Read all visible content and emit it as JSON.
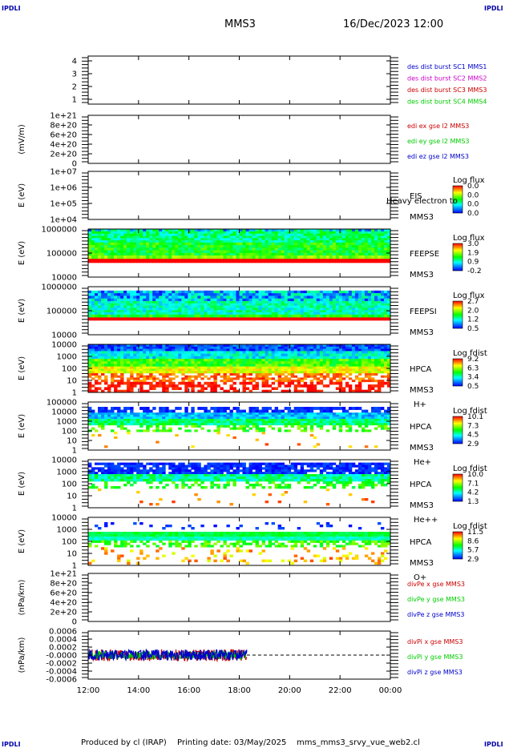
{
  "header": {
    "logo_left": "IPDLI",
    "logo_right": "IPDLI",
    "mission": "MMS3",
    "datetime": "16/Dec/2023 12:00"
  },
  "footer": {
    "logo_left": "IPDLI",
    "logo_right": "IPDLI",
    "produced_by": "Produced by cl (IRAP)",
    "printing_date": "Printing date: 03/May/2025",
    "script_name": "mms_mms3_srvy_vue_web2.cl"
  },
  "colors": {
    "blue": "#0000cc",
    "magenta": "#cc00cc",
    "red": "#cc0000",
    "green": "#00cc00"
  },
  "chart_data": [
    {
      "type": "line",
      "id": "burst",
      "ylabel": "",
      "yticks": [
        "4",
        "3",
        "2",
        "1"
      ],
      "ylim": [
        0.5,
        4.5
      ],
      "series": [
        {
          "name": "des dist burst SC1 MMS1",
          "color": "#0000cc",
          "values": []
        },
        {
          "name": "des dist burst SC2 MMS2",
          "color": "#cc00cc",
          "values": []
        },
        {
          "name": "des dist burst SC3 MMS3",
          "color": "#cc0000",
          "values": []
        },
        {
          "name": "des dist burst SC4 MMS4",
          "color": "#00cc00",
          "values": []
        }
      ]
    },
    {
      "type": "line",
      "id": "edi",
      "ylabel": "(mV/m)",
      "yticks": [
        "1e+21",
        "8e+20",
        "6e+20",
        "4e+20",
        "2e+20",
        "0"
      ],
      "ylim": [
        0,
        1e+21
      ],
      "zero_line": true,
      "series": [
        {
          "name": "edi ex gse l2 MMS3",
          "color": "#cc0000",
          "values": []
        },
        {
          "name": "edi ey gse l2 MMS3",
          "color": "#00cc00",
          "values": []
        },
        {
          "name": "edi ez gse l2 MMS3",
          "color": "#0000cc",
          "values": []
        }
      ]
    },
    {
      "type": "heatmap",
      "id": "eis",
      "ylabel": "E (eV)",
      "yticks": [
        "1e+07",
        "1e+06",
        "1e+05",
        "1e+04"
      ],
      "labels": [
        "EIS",
        "MMS3"
      ],
      "overlay": "Heavy electron to",
      "colorbar": {
        "title": "Log flux",
        "ticks": [
          "0.0",
          "0.0",
          "0.0",
          "0.0"
        ]
      },
      "coverage": [
        0,
        0
      ],
      "bands": []
    },
    {
      "type": "heatmap",
      "id": "feeps_e",
      "ylabel": "E (eV)",
      "yticks": [
        "1000000",
        "100000",
        "10000"
      ],
      "labels": [
        "FEEPSE",
        "MMS3"
      ],
      "colorbar": {
        "title": "Log flux",
        "ticks": [
          "3.0",
          "1.9",
          "0.9",
          "-0.2"
        ]
      },
      "coverage": [
        12,
        24
      ],
      "bands": [
        {
          "y0": 0.0,
          "y1": 0.05,
          "level": 0.3,
          "noise": 0.25
        },
        {
          "y0": 0.05,
          "y1": 0.28,
          "level": 0.4,
          "noise": 0.12
        },
        {
          "y0": 0.28,
          "y1": 0.55,
          "level": 0.5,
          "noise": 0.12
        },
        {
          "y0": 0.55,
          "y1": 0.62,
          "level": 0.62,
          "noise": 0.08
        },
        {
          "y0": 0.62,
          "y1": 0.7,
          "level": 1.0,
          "noise": 0.0
        },
        {
          "y0": 0.7,
          "y1": 1.0,
          "level": -1,
          "noise": 0
        }
      ]
    },
    {
      "type": "heatmap",
      "id": "feeps_i",
      "ylabel": "E (eV)",
      "yticks": [
        "1000000",
        "100000",
        "10000"
      ],
      "labels": [
        "FEEPSI",
        "MMS3"
      ],
      "colorbar": {
        "title": "Log flux",
        "ticks": [
          "2.7",
          "2.0",
          "1.2",
          "0.5"
        ]
      },
      "coverage": [
        12,
        24
      ],
      "bands": [
        {
          "y0": 0.08,
          "y1": 0.3,
          "level": 0.22,
          "noise": 0.2
        },
        {
          "y0": 0.3,
          "y1": 0.58,
          "level": 0.35,
          "noise": 0.12
        },
        {
          "y0": 0.58,
          "y1": 0.64,
          "level": 0.5,
          "noise": 0.1
        },
        {
          "y0": 0.64,
          "y1": 0.7,
          "level": 1.0,
          "noise": 0.0
        },
        {
          "y0": 0.7,
          "y1": 1.0,
          "level": -1,
          "noise": 0
        }
      ]
    },
    {
      "type": "heatmap",
      "id": "hpca_h",
      "ylabel": "E (eV)",
      "yticks": [
        "10000",
        "1000",
        "100",
        "10",
        "1"
      ],
      "labels": [
        "HPCA",
        "MMS3",
        "H+"
      ],
      "colorbar": {
        "title": "Log fdist",
        "ticks": [
          "9.2",
          "6.3",
          "3.4",
          "0.5"
        ]
      },
      "coverage": [
        12,
        24
      ],
      "bands": [
        {
          "y0": 0.0,
          "y1": 0.14,
          "level": 0.1,
          "noise": 0.12
        },
        {
          "y0": 0.14,
          "y1": 0.3,
          "level": 0.3,
          "noise": 0.12
        },
        {
          "y0": 0.3,
          "y1": 0.46,
          "level": 0.55,
          "noise": 0.12
        },
        {
          "y0": 0.46,
          "y1": 0.6,
          "level": 0.72,
          "noise": 0.1
        },
        {
          "y0": 0.6,
          "y1": 0.78,
          "level": 0.9,
          "noise": 0.08,
          "gaps": 0.4
        },
        {
          "y0": 0.78,
          "y1": 1.0,
          "level": 0.98,
          "noise": 0.04,
          "gaps": 0.5
        }
      ]
    },
    {
      "type": "heatmap",
      "id": "hpca_he",
      "ylabel": "E (eV)",
      "yticks": [
        "100000",
        "10000",
        "1000",
        "100",
        "10",
        "1"
      ],
      "labels": [
        "HPCA",
        "MMS3",
        "He+"
      ],
      "colorbar": {
        "title": "Log fdist",
        "ticks": [
          "10.1",
          "7.3",
          "4.5",
          "2.9"
        ]
      },
      "coverage": [
        12,
        24
      ],
      "bands": [
        {
          "y0": 0.1,
          "y1": 0.22,
          "level": 0.05,
          "noise": 0.05,
          "gaps": 0.3
        },
        {
          "y0": 0.22,
          "y1": 0.35,
          "level": 0.22,
          "noise": 0.1
        },
        {
          "y0": 0.35,
          "y1": 0.48,
          "level": 0.42,
          "noise": 0.12
        },
        {
          "y0": 0.48,
          "y1": 0.62,
          "level": 0.55,
          "noise": 0.12,
          "gaps": 0.6
        },
        {
          "y0": 0.62,
          "y1": 0.95,
          "level": 0.85,
          "noise": 0.1,
          "gaps": 0.96
        }
      ]
    },
    {
      "type": "heatmap",
      "id": "hpca_hepp",
      "ylabel": "E (eV)",
      "yticks": [
        "10000",
        "1000",
        "100",
        "10",
        "1"
      ],
      "labels": [
        "HPCA",
        "MMS3",
        "He++"
      ],
      "colorbar": {
        "title": "Log fdist",
        "ticks": [
          "10.0",
          "7.1",
          "4.2",
          "1.3"
        ]
      },
      "coverage": [
        12,
        24
      ],
      "bands": [
        {
          "y0": 0.06,
          "y1": 0.3,
          "level": 0.05,
          "noise": 0.06,
          "gaps": 0.15
        },
        {
          "y0": 0.3,
          "y1": 0.45,
          "level": 0.38,
          "noise": 0.12
        },
        {
          "y0": 0.45,
          "y1": 0.6,
          "level": 0.52,
          "noise": 0.1,
          "gaps": 0.55
        },
        {
          "y0": 0.6,
          "y1": 0.95,
          "level": 0.85,
          "noise": 0.1,
          "gaps": 0.97
        }
      ]
    },
    {
      "type": "heatmap",
      "id": "hpca_o",
      "ylabel": "E (eV)",
      "yticks": [
        "10000",
        "1000",
        "100",
        "10",
        "1"
      ],
      "labels": [
        "HPCA",
        "MMS3",
        "O+"
      ],
      "colorbar": {
        "title": "Log fdist",
        "ticks": [
          "11.5",
          "8.6",
          "5.7",
          "2.9"
        ]
      },
      "coverage": [
        12,
        24
      ],
      "bands": [
        {
          "y0": 0.1,
          "y1": 0.25,
          "level": 0.05,
          "noise": 0.05,
          "gaps": 0.88
        },
        {
          "y0": 0.3,
          "y1": 0.4,
          "level": 0.45,
          "noise": 0.05
        },
        {
          "y0": 0.4,
          "y1": 0.48,
          "level": 0.35,
          "noise": 0.05
        },
        {
          "y0": 0.48,
          "y1": 0.62,
          "level": 0.55,
          "noise": 0.1,
          "gaps": 0.5
        },
        {
          "y0": 0.62,
          "y1": 0.98,
          "level": 0.82,
          "noise": 0.12,
          "gaps": 0.85
        }
      ]
    },
    {
      "type": "line",
      "id": "dive",
      "ylabel": "(nPa/km)",
      "yticks": [
        "1e+21",
        "8e+20",
        "6e+20",
        "4e+20",
        "2e+20",
        "0"
      ],
      "ylim": [
        0,
        1e+21
      ],
      "zero_line": true,
      "series": [
        {
          "name": "divPe x gse MMS3",
          "color": "#cc0000",
          "values": []
        },
        {
          "name": "divPe y gse MMS3",
          "color": "#00cc00",
          "values": []
        },
        {
          "name": "divPe z gse MMS3",
          "color": "#0000cc",
          "values": []
        }
      ]
    },
    {
      "type": "line",
      "id": "divi",
      "ylabel": "(nPa/km)",
      "yticks": [
        "0.0006",
        "0.0004",
        "0.0002",
        "-0.0000",
        "-0.0002",
        "-0.0004",
        "-0.0006"
      ],
      "ylim": [
        -0.0007,
        0.0007
      ],
      "zero_line": true,
      "coverage": [
        12,
        18.3
      ],
      "series": [
        {
          "name": "divPi x gse MMS3",
          "color": "#cc0000",
          "amplitude": 0.00017
        },
        {
          "name": "divPi y gse MMS3",
          "color": "#00cc00",
          "amplitude": 0.00012
        },
        {
          "name": "divPi z gse MMS3",
          "color": "#0000cc",
          "amplitude": 0.00016
        }
      ]
    }
  ],
  "xaxis": {
    "range": [
      12,
      24
    ],
    "ticks": [
      {
        "value": 12,
        "label": "12:00"
      },
      {
        "value": 14,
        "label": "14:00"
      },
      {
        "value": 16,
        "label": "16:00"
      },
      {
        "value": 18,
        "label": "18:00"
      },
      {
        "value": 20,
        "label": "20:00"
      },
      {
        "value": 22,
        "label": "22:00"
      },
      {
        "value": 24,
        "label": "00:00"
      }
    ]
  }
}
